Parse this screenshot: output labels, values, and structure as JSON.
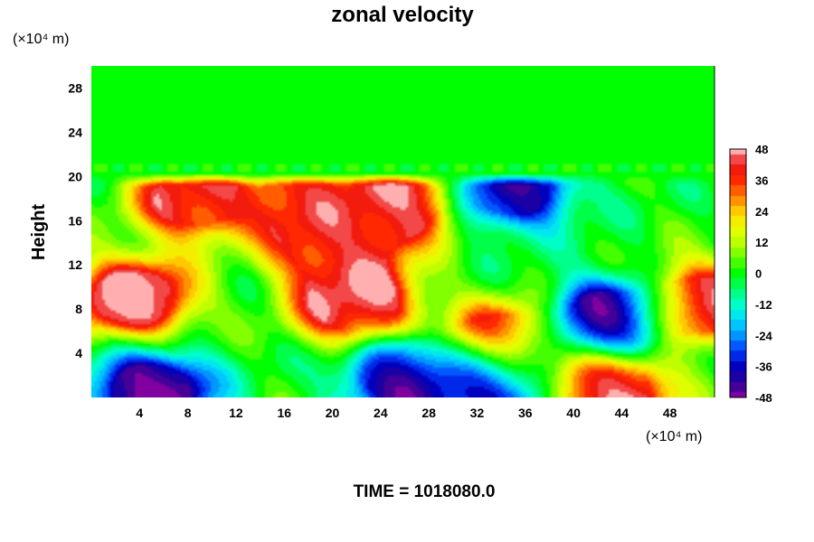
{
  "chart_data": {
    "type": "heatmap",
    "title": "zonal velocity",
    "ylabel": "Height",
    "x_unit_label": "(×10⁴ m)",
    "y_unit_label": "(×10⁴ m)",
    "xlim": [
      0,
      51.7
    ],
    "ylim": [
      0,
      30
    ],
    "x_ticks": [
      "4",
      "8",
      "12",
      "16",
      "20",
      "24",
      "28",
      "32",
      "36",
      "40",
      "44",
      "48"
    ],
    "y_ticks": [
      "4",
      "8",
      "12",
      "16",
      "20",
      "24",
      "28"
    ],
    "colorbar": {
      "range": [
        -48,
        48
      ],
      "step": 4,
      "labels": [
        "48",
        "36",
        "24",
        "12",
        "0",
        "-12",
        "-24",
        "-36",
        "-48"
      ]
    },
    "features": [
      {
        "desc": "uniform field above ~20",
        "x": 25,
        "y": 25,
        "value": 0
      },
      {
        "desc": "strong westerly core left",
        "x": 3.5,
        "y": 9,
        "value": 46
      },
      {
        "desc": "strong westerly core center",
        "x": 22,
        "y": 8.5,
        "value": 46
      },
      {
        "desc": "westerly core upper center",
        "x": 25,
        "y": 17.5,
        "value": 45
      },
      {
        "desc": "westerly patch upper left",
        "x": 8.5,
        "y": 18,
        "value": 40
      },
      {
        "desc": "westerly patch",
        "x": 18.5,
        "y": 18,
        "value": 38
      },
      {
        "desc": "westerly patch",
        "x": 20,
        "y": 14,
        "value": 40
      },
      {
        "desc": "westerly patch right lower",
        "x": 34,
        "y": 5,
        "value": 38
      },
      {
        "desc": "westerly patch right edge",
        "x": 51,
        "y": 8.5,
        "value": 42
      },
      {
        "desc": "westerly bottom right",
        "x": 43,
        "y": 0.5,
        "value": 48
      },
      {
        "desc": "easterly core right",
        "x": 43,
        "y": 7,
        "value": -44
      },
      {
        "desc": "easterly upper right",
        "x": 35,
        "y": 19,
        "value": -38
      },
      {
        "desc": "easterly bottom left",
        "x": 5,
        "y": 0.5,
        "value": -46
      },
      {
        "desc": "easterly bottom center",
        "x": 26,
        "y": 2,
        "value": -40
      },
      {
        "desc": "easterly near surface",
        "x": 33.5,
        "y": 1,
        "value": -44
      }
    ]
  },
  "caption": "TIME = 1018080.0"
}
